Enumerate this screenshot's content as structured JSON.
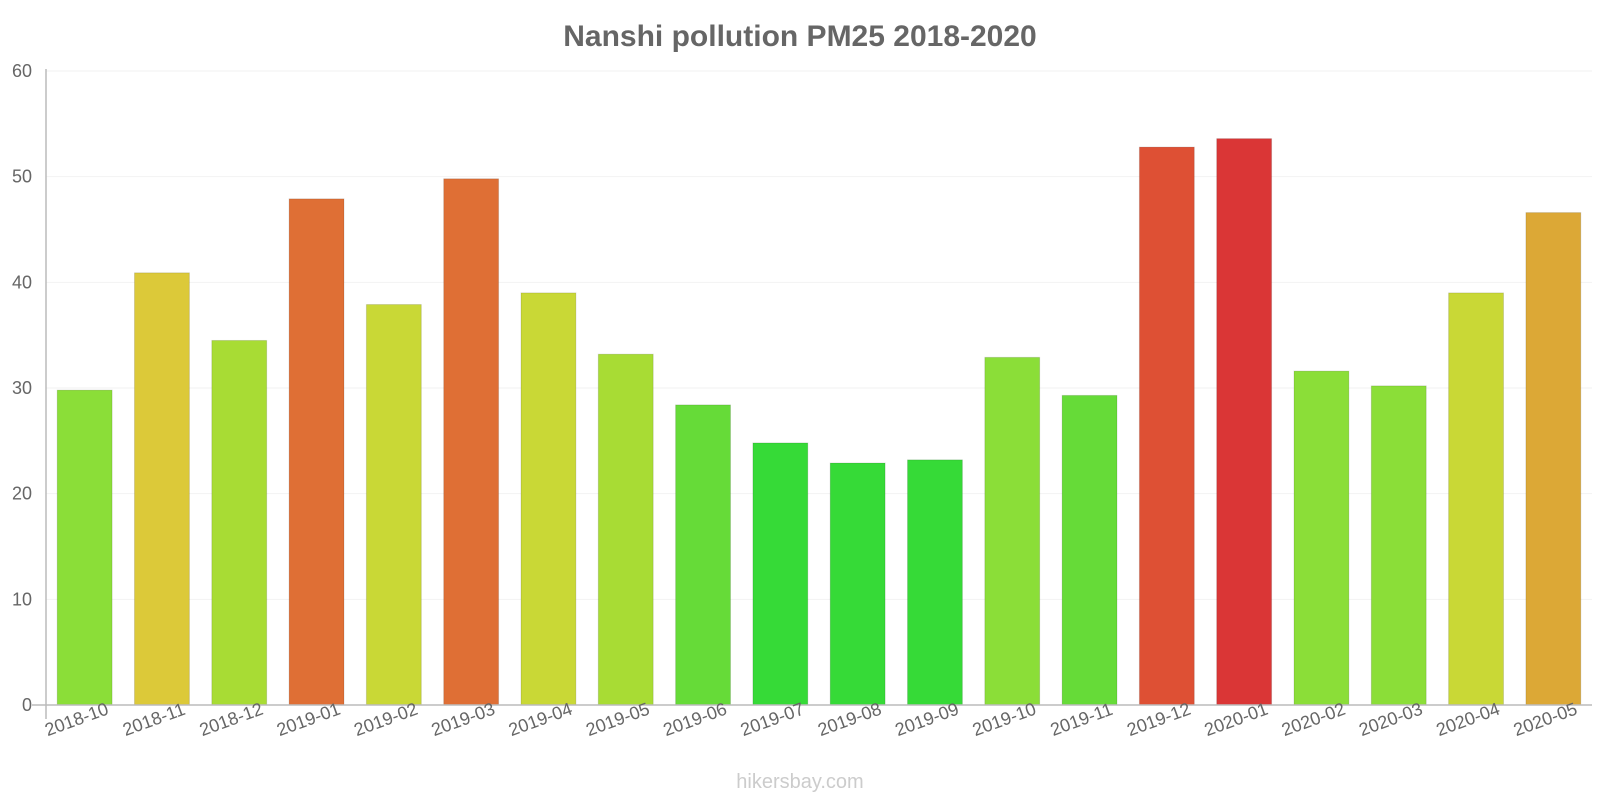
{
  "chart_data": {
    "type": "bar",
    "title": "Nanshi pollution PM25 2018-2020",
    "xlabel": "",
    "ylabel": "",
    "ylim": [
      0,
      60
    ],
    "yticks": [
      0,
      10,
      20,
      30,
      40,
      50,
      60
    ],
    "grid": true,
    "categories": [
      "2018-10",
      "2018-11",
      "2018-12",
      "2019-01",
      "2019-02",
      "2019-03",
      "2019-04",
      "2019-05",
      "2019-06",
      "2019-07",
      "2019-08",
      "2019-09",
      "2019-10",
      "2019-11",
      "2019-12",
      "2020-01",
      "2020-02",
      "2020-03",
      "2020-04",
      "2020-05"
    ],
    "values": [
      29.8,
      40.9,
      34.5,
      47.9,
      37.9,
      49.8,
      39.0,
      33.2,
      28.4,
      24.8,
      22.9,
      23.2,
      32.9,
      29.3,
      52.8,
      53.6,
      31.6,
      30.2,
      39.0,
      46.6
    ],
    "bar_colors": [
      "#8bde38",
      "#dcc939",
      "#a8dc34",
      "#df6f35",
      "#c9d836",
      "#df6f35",
      "#c9d836",
      "#a8dc34",
      "#66db38",
      "#36da37",
      "#36da37",
      "#36da37",
      "#8bde38",
      "#66db38",
      "#de5034",
      "#da3636",
      "#8bde38",
      "#8bde38",
      "#c9d836",
      "#dca836"
    ],
    "watermark": "hikersbay.com"
  }
}
